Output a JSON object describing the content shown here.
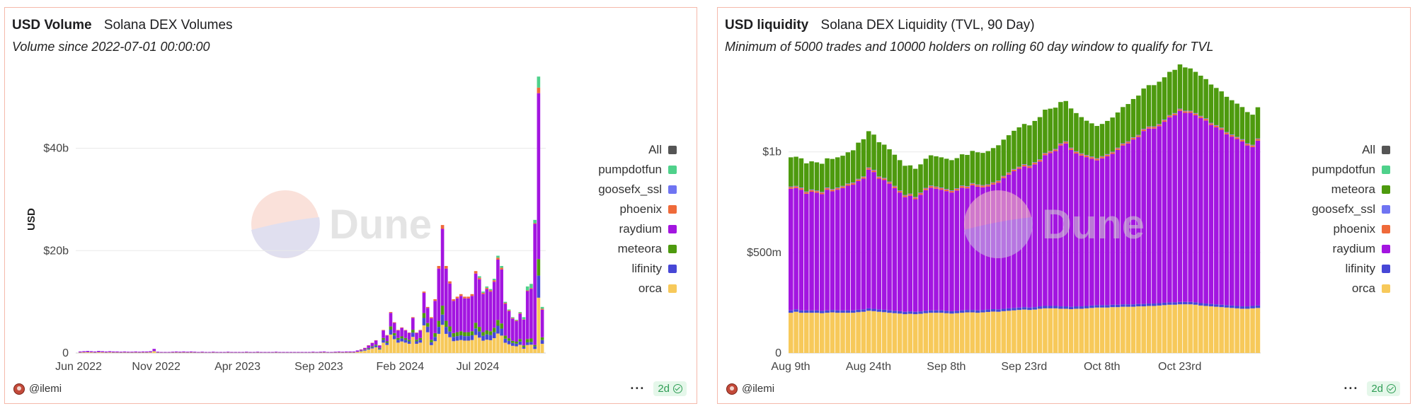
{
  "left_panel": {
    "title": "USD Volume",
    "subtitle_title": "Solana DEX Volumes",
    "description": "Volume since 2022-07-01 00:00:00",
    "author": "@ilemi",
    "age_badge": "2d",
    "menu_icon": "ellipsis-icon",
    "watermark": "Dune",
    "legend": [
      {
        "name": "All",
        "color": "#555555"
      },
      {
        "name": "pumpdotfun",
        "color": "#4fd18b"
      },
      {
        "name": "goosefx_ssl",
        "color": "#6f74f2"
      },
      {
        "name": "phoenix",
        "color": "#ef6a3a"
      },
      {
        "name": "raydium",
        "color": "#a315e0"
      },
      {
        "name": "meteora",
        "color": "#4d9a0e"
      },
      {
        "name": "lifinity",
        "color": "#4747d6"
      },
      {
        "name": "orca",
        "color": "#f7c95a"
      }
    ]
  },
  "right_panel": {
    "title": "USD liquidity",
    "subtitle_title": "Solana DEX Liquidity (TVL, 90 Day)",
    "description": "Minimum of 5000 trades and 10000 holders on rolling 60 day window to qualify for TVL",
    "author": "@ilemi",
    "age_badge": "2d",
    "menu_icon": "ellipsis-icon",
    "watermark": "Dune",
    "legend": [
      {
        "name": "All",
        "color": "#555555"
      },
      {
        "name": "pumpdotfun",
        "color": "#4fd18b"
      },
      {
        "name": "meteora",
        "color": "#4d9a0e"
      },
      {
        "name": "goosefx_ssl",
        "color": "#6f74f2"
      },
      {
        "name": "phoenix",
        "color": "#ef6a3a"
      },
      {
        "name": "raydium",
        "color": "#a315e0"
      },
      {
        "name": "lifinity",
        "color": "#4747d6"
      },
      {
        "name": "orca",
        "color": "#f7c95a"
      }
    ]
  },
  "chart_data": [
    {
      "type": "bar",
      "stacked": true,
      "ylabel": "USD",
      "y_ticks": [
        {
          "value": 0,
          "label": "0"
        },
        {
          "value": 20,
          "label": "$20b"
        },
        {
          "value": 40,
          "label": "$40b"
        }
      ],
      "ylim": [
        0,
        55
      ],
      "x_ticks": [
        {
          "index": 0,
          "label": "Jun 2022"
        },
        {
          "index": 21,
          "label": "Nov 2022"
        },
        {
          "index": 43,
          "label": "Apr 2023"
        },
        {
          "index": 65,
          "label": "Sep 2023"
        },
        {
          "index": 87,
          "label": "Feb 2024"
        },
        {
          "index": 108,
          "label": "Jul 2024"
        }
      ],
      "grid": true,
      "legend_position": "right",
      "series_order": [
        "orca",
        "lifinity",
        "meteora",
        "raydium",
        "phoenix",
        "goosefx_ssl",
        "pumpdotfun"
      ],
      "series_colors": {
        "orca": "#f7c95a",
        "lifinity": "#4747d6",
        "meteora": "#4d9a0e",
        "raydium": "#a315e0",
        "phoenix": "#ef6a3a",
        "goosefx_ssl": "#6f74f2",
        "pumpdotfun": "#4fd18b"
      },
      "totals": [
        0.3,
        0.35,
        0.4,
        0.35,
        0.3,
        0.4,
        0.35,
        0.3,
        0.35,
        0.3,
        0.3,
        0.25,
        0.3,
        0.25,
        0.25,
        0.3,
        0.25,
        0.3,
        0.3,
        0.35,
        0.8,
        0.25,
        0.2,
        0.2,
        0.2,
        0.25,
        0.3,
        0.25,
        0.3,
        0.25,
        0.3,
        0.25,
        0.2,
        0.25,
        0.2,
        0.2,
        0.25,
        0.2,
        0.2,
        0.2,
        0.25,
        0.2,
        0.2,
        0.2,
        0.2,
        0.25,
        0.2,
        0.2,
        0.25,
        0.2,
        0.2,
        0.2,
        0.2,
        0.25,
        0.2,
        0.2,
        0.2,
        0.2,
        0.2,
        0.2,
        0.2,
        0.2,
        0.2,
        0.25,
        0.2,
        0.25,
        0.3,
        0.2,
        0.2,
        0.25,
        0.3,
        0.25,
        0.3,
        0.3,
        0.3,
        0.5,
        0.7,
        1.0,
        1.5,
        2.0,
        2.5,
        1.5,
        4.5,
        3.5,
        8.0,
        6.0,
        4.5,
        5.0,
        4.5,
        4.0,
        7.0,
        4.0,
        4.5,
        12.0,
        9.0,
        7.0,
        10.5,
        17.0,
        25.0,
        17.0,
        14.0,
        10.5,
        11.0,
        11.5,
        11.0,
        11.0,
        11.5,
        16.0,
        15.0,
        12.0,
        13.0,
        12.5,
        14.5,
        19.0,
        17.0,
        10.0,
        8.5,
        7.0,
        6.5,
        8.0,
        7.0,
        13.0,
        13.5,
        26.0,
        54.0,
        9.0
      ],
      "shares": [
        {
          "from": 0,
          "orca": 0.45,
          "lifinity": 0.05,
          "meteora": 0.0,
          "raydium": 0.5,
          "phoenix": 0.0,
          "goosefx_ssl": 0.0,
          "pumpdotfun": 0.0
        },
        {
          "from": 76,
          "orca": 0.45,
          "lifinity": 0.12,
          "meteora": 0.08,
          "raydium": 0.33,
          "phoenix": 0.02,
          "goosefx_ssl": 0.0,
          "pumpdotfun": 0.0
        },
        {
          "from": 95,
          "orca": 0.22,
          "lifinity": 0.08,
          "meteora": 0.07,
          "raydium": 0.6,
          "phoenix": 0.03,
          "goosefx_ssl": 0.0,
          "pumpdotfun": 0.0
        },
        {
          "from": 108,
          "orca": 0.2,
          "lifinity": 0.08,
          "meteora": 0.06,
          "raydium": 0.62,
          "phoenix": 0.02,
          "goosefx_ssl": 0.0,
          "pumpdotfun": 0.02
        },
        {
          "from": 120,
          "orca": 0.12,
          "lifinity": 0.04,
          "meteora": 0.05,
          "raydium": 0.72,
          "phoenix": 0.01,
          "goosefx_ssl": 0.0,
          "pumpdotfun": 0.06
        },
        {
          "from": 123,
          "orca": 0.03,
          "lifinity": 0.02,
          "meteora": 0.01,
          "raydium": 0.91,
          "phoenix": 0.005,
          "goosefx_ssl": 0.0,
          "pumpdotfun": 0.025
        },
        {
          "from": 124,
          "orca": 0.2,
          "lifinity": 0.08,
          "meteora": 0.06,
          "raydium": 0.6,
          "phoenix": 0.02,
          "goosefx_ssl": 0.0,
          "pumpdotfun": 0.04
        }
      ]
    },
    {
      "type": "bar",
      "stacked": true,
      "ylabel": "",
      "y_ticks": [
        {
          "value": 0,
          "label": "0"
        },
        {
          "value": 500,
          "label": "$500m"
        },
        {
          "value": 1000,
          "label": "$1b"
        }
      ],
      "ylim": [
        0,
        1400
      ],
      "x_ticks": [
        {
          "index": 0,
          "label": "Aug 9th"
        },
        {
          "index": 15,
          "label": "Aug 24th"
        },
        {
          "index": 30,
          "label": "Sep 8th"
        },
        {
          "index": 45,
          "label": "Sep 23rd"
        },
        {
          "index": 60,
          "label": "Oct 8th"
        },
        {
          "index": 75,
          "label": "Oct 23rd"
        }
      ],
      "grid": true,
      "legend_position": "right",
      "series_order": [
        "orca",
        "lifinity",
        "raydium",
        "phoenix",
        "goosefx_ssl",
        "meteora",
        "pumpdotfun"
      ],
      "series_colors": {
        "orca": "#f7c95a",
        "lifinity": "#4747d6",
        "raydium": "#a315e0",
        "phoenix": "#ef6a3a",
        "goosefx_ssl": "#6f74f2",
        "meteora": "#4d9a0e",
        "pumpdotfun": "#4fd18b"
      },
      "orca": [
        200,
        205,
        200,
        200,
        200,
        200,
        198,
        200,
        202,
        200,
        200,
        200,
        200,
        203,
        205,
        210,
        208,
        205,
        203,
        200,
        198,
        196,
        193,
        195,
        193,
        195,
        198,
        200,
        200,
        200,
        198,
        196,
        198,
        200,
        202,
        202,
        200,
        202,
        204,
        206,
        205,
        208,
        210,
        212,
        214,
        216,
        214,
        216,
        220,
        222,
        222,
        222,
        220,
        220,
        218,
        220,
        220,
        222,
        224,
        226,
        226,
        226,
        228,
        228,
        230,
        230,
        230,
        232,
        232,
        234,
        234,
        236,
        238,
        240,
        240,
        242,
        242,
        242,
        240,
        236,
        234,
        232,
        230,
        228,
        226,
        224,
        222,
        220,
        220,
        222,
        224
      ],
      "lifinity": [
        12,
        12,
        12,
        12,
        12,
        12,
        12,
        12,
        12,
        12,
        12,
        12,
        12,
        12,
        12,
        12,
        12,
        12,
        12,
        12,
        12,
        12,
        12,
        12,
        12,
        12,
        12,
        12,
        12,
        12,
        12,
        12,
        12,
        12,
        12,
        12,
        12,
        12,
        12,
        12,
        12,
        12,
        12,
        12,
        12,
        12,
        12,
        12,
        12,
        12,
        12,
        12,
        12,
        12,
        12,
        12,
        12,
        12,
        12,
        12,
        12,
        12,
        12,
        12,
        12,
        12,
        12,
        12,
        12,
        12,
        12,
        12,
        12,
        12,
        12,
        12,
        12,
        12,
        12,
        12,
        12,
        12,
        12,
        12,
        12,
        12,
        12,
        12,
        12,
        12,
        12
      ],
      "raydium": [
        605,
        603,
        600,
        580,
        590,
        585,
        580,
        600,
        590,
        600,
        608,
        620,
        625,
        640,
        650,
        690,
        680,
        650,
        645,
        630,
        610,
        590,
        570,
        575,
        560,
        580,
        600,
        610,
        605,
        600,
        595,
        590,
        598,
        610,
        605,
        620,
        615,
        610,
        612,
        620,
        630,
        650,
        665,
        680,
        690,
        700,
        695,
        710,
        720,
        750,
        760,
        770,
        800,
        810,
        780,
        760,
        750,
        740,
        730,
        720,
        730,
        740,
        750,
        770,
        790,
        800,
        820,
        830,
        860,
        870,
        870,
        880,
        900,
        920,
        930,
        950,
        940,
        940,
        930,
        920,
        910,
        890,
        880,
        870,
        850,
        840,
        830,
        820,
        800,
        790,
        820
      ],
      "phoenix": [
        8,
        8,
        8,
        8,
        8,
        8,
        8,
        8,
        8,
        8,
        8,
        8,
        8,
        8,
        8,
        8,
        8,
        8,
        8,
        8,
        8,
        8,
        8,
        8,
        8,
        8,
        8,
        8,
        8,
        8,
        8,
        8,
        8,
        8,
        8,
        8,
        8,
        8,
        8,
        8,
        8,
        8,
        8,
        8,
        8,
        8,
        8,
        8,
        8,
        8,
        8,
        8,
        8,
        8,
        8,
        8,
        8,
        8,
        8,
        8,
        8,
        8,
        8,
        8,
        8,
        8,
        8,
        8,
        8,
        8,
        8,
        8,
        8,
        8,
        8,
        8,
        8,
        8,
        8,
        8,
        8,
        8,
        8,
        8,
        8,
        8,
        8,
        8,
        8,
        8,
        8
      ],
      "goosefx_ssl": [
        3,
        3,
        3,
        3,
        3,
        3,
        3,
        3,
        3,
        3,
        3,
        3,
        3,
        3,
        3,
        3,
        3,
        3,
        3,
        3,
        3,
        3,
        3,
        3,
        3,
        3,
        3,
        3,
        3,
        3,
        3,
        3,
        3,
        3,
        3,
        3,
        3,
        3,
        3,
        3,
        3,
        3,
        3,
        3,
        3,
        3,
        3,
        3,
        3,
        3,
        3,
        3,
        3,
        3,
        3,
        3,
        3,
        3,
        3,
        3,
        3,
        3,
        3,
        3,
        3,
        3,
        3,
        3,
        3,
        3,
        3,
        3,
        3,
        3,
        3,
        3,
        3,
        3,
        3,
        3,
        3,
        3,
        3,
        3,
        3,
        3,
        3,
        3,
        3,
        3,
        3
      ],
      "meteora": [
        145,
        145,
        145,
        140,
        140,
        140,
        140,
        145,
        150,
        150,
        150,
        155,
        160,
        180,
        185,
        180,
        175,
        170,
        165,
        160,
        155,
        150,
        145,
        140,
        140,
        140,
        145,
        150,
        150,
        150,
        150,
        150,
        150,
        155,
        155,
        160,
        160,
        160,
        165,
        170,
        175,
        180,
        185,
        190,
        195,
        200,
        200,
        205,
        210,
        215,
        210,
        205,
        205,
        200,
        195,
        190,
        180,
        170,
        165,
        160,
        160,
        165,
        170,
        175,
        180,
        185,
        190,
        195,
        200,
        205,
        205,
        210,
        210,
        215,
        215,
        220,
        215,
        210,
        205,
        200,
        195,
        190,
        185,
        180,
        175,
        170,
        165,
        160,
        155,
        150,
        155
      ],
      "pumpdotfun": [
        0,
        0,
        0,
        0,
        0,
        0,
        0,
        0,
        0,
        0,
        0,
        0,
        0,
        0,
        0,
        0,
        0,
        0,
        0,
        0,
        0,
        0,
        0,
        0,
        0,
        0,
        0,
        0,
        0,
        0,
        0,
        0,
        0,
        0,
        0,
        0,
        0,
        0,
        0,
        0,
        0,
        0,
        0,
        0,
        0,
        0,
        0,
        0,
        0,
        0,
        0,
        0,
        0,
        0,
        0,
        0,
        0,
        0,
        0,
        0,
        0,
        0,
        0,
        0,
        0,
        0,
        0,
        0,
        0,
        0,
        0,
        0,
        0,
        0,
        0,
        0,
        0,
        0,
        0,
        0,
        0,
        0,
        0,
        0,
        0,
        0,
        0,
        0,
        0,
        0,
        0
      ]
    }
  ]
}
